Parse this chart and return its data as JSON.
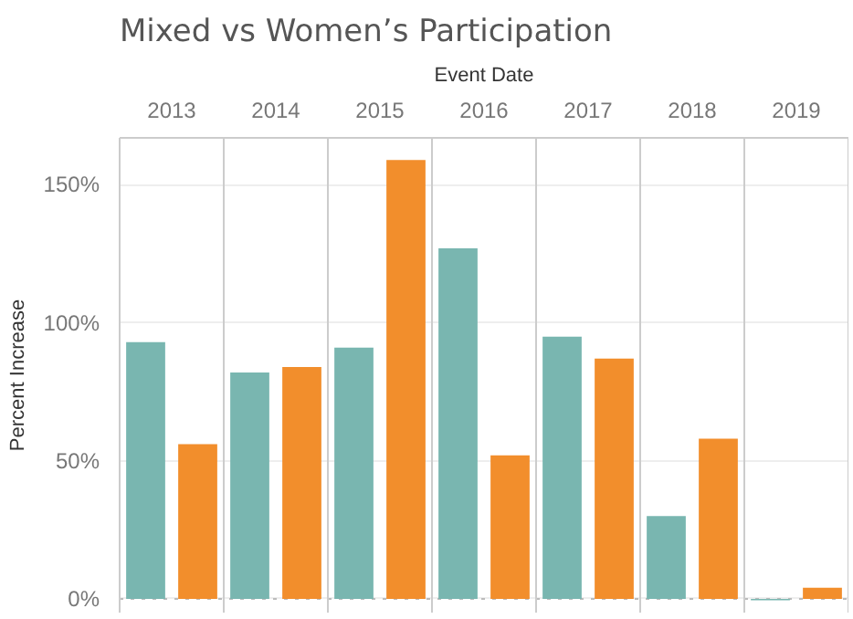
{
  "chart_data": {
    "type": "bar",
    "title": "Mixed vs Women’s Participation",
    "xlabel": "Event Date",
    "ylabel": "Percent Increase",
    "categories": [
      "2013",
      "2014",
      "2015",
      "2016",
      "2017",
      "2018",
      "2019"
    ],
    "series": [
      {
        "color": "#79b6b0",
        "values": [
          93,
          82,
          91,
          127,
          95,
          30,
          -0.5
        ]
      },
      {
        "color": "#f28e2c",
        "values": [
          56,
          84,
          159,
          52,
          87,
          58,
          4
        ]
      }
    ],
    "ylim": [
      -5,
      167
    ],
    "yticks": [
      {
        "value": 0,
        "label": "0%"
      },
      {
        "value": 50,
        "label": "50%"
      },
      {
        "value": 100,
        "label": "100%"
      },
      {
        "value": 150,
        "label": "150%"
      }
    ],
    "ref_lines": [
      {
        "axis": "y",
        "value": 0,
        "color": "#bbbbbb",
        "line_style": "dotted"
      }
    ],
    "grid": "y"
  }
}
